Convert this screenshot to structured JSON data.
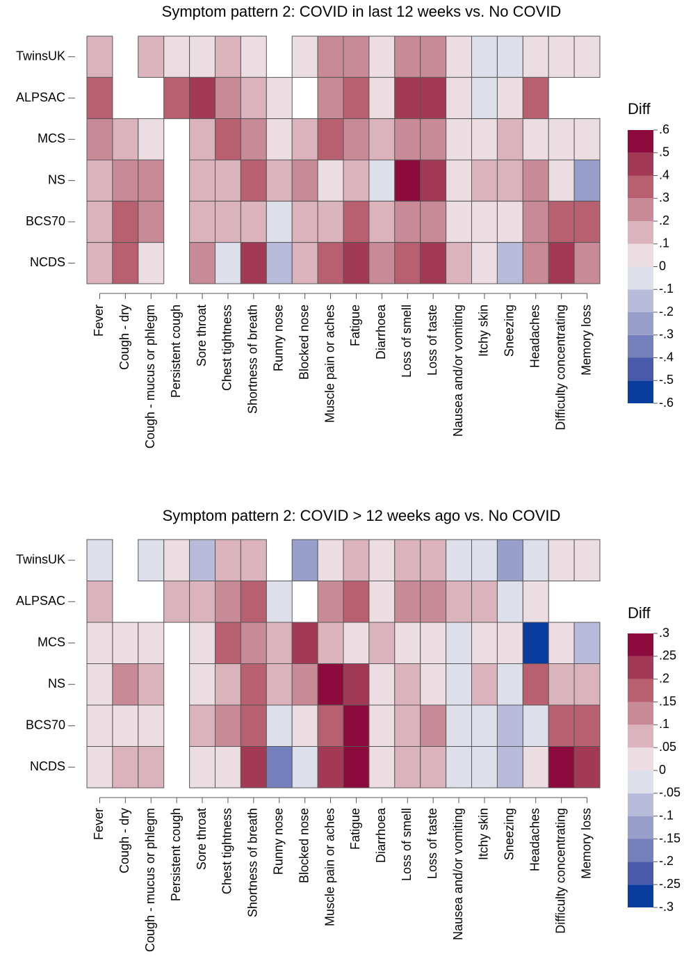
{
  "chart_data": [
    {
      "type": "heatmap",
      "title": "Symptom pattern 2: COVID in last 12 weeks vs. No COVID",
      "x_categories": [
        "Fever",
        "Cough - dry",
        "Cough - mucus or phlegm",
        "Persistent cough",
        "Sore throat",
        "Chest tightness",
        "Shortness of breath",
        "Runny nose",
        "Blocked nose",
        "Muscle pain or aches",
        "Fatigue",
        "Diarrhoea",
        "Loss of smell",
        "Loss of taste",
        "Nausea and/or vomiting",
        "Itchy skin",
        "Sneezing",
        "Headaches",
        "Difficulty concentrating",
        "Memory loss"
      ],
      "y_categories": [
        "TwinsUK",
        "ALPSAC",
        "MCS",
        "NS",
        "BCS70",
        "NCDS"
      ],
      "values": [
        [
          0.15,
          null,
          0.15,
          0.05,
          0.05,
          0.15,
          0.05,
          null,
          0.05,
          0.25,
          0.25,
          0.05,
          0.25,
          0.25,
          0.05,
          -0.05,
          -0.05,
          0.05,
          0.05,
          0.05
        ],
        [
          0.35,
          null,
          null,
          0.35,
          0.45,
          0.25,
          0.15,
          0.05,
          null,
          0.25,
          0.35,
          0.05,
          0.45,
          0.45,
          0.05,
          -0.05,
          0.05,
          0.35,
          null,
          null
        ],
        [
          0.25,
          0.15,
          0.05,
          null,
          0.15,
          0.35,
          0.25,
          0.05,
          0.15,
          0.35,
          0.25,
          0.15,
          0.25,
          0.25,
          0.05,
          0.05,
          0.15,
          0.05,
          0.05,
          0.05
        ],
        [
          0.15,
          0.25,
          0.25,
          null,
          0.15,
          0.15,
          0.35,
          0.15,
          0.25,
          0.05,
          0.15,
          -0.05,
          0.55,
          0.45,
          0.05,
          0.15,
          0.15,
          0.25,
          0.05,
          -0.25
        ],
        [
          0.15,
          0.35,
          0.25,
          null,
          0.15,
          0.15,
          0.15,
          -0.05,
          0.15,
          0.15,
          0.35,
          0.15,
          0.25,
          0.25,
          0.05,
          0.05,
          0.05,
          0.25,
          0.35,
          0.35
        ],
        [
          0.15,
          0.35,
          0.05,
          null,
          0.25,
          -0.05,
          0.45,
          -0.15,
          0.15,
          0.35,
          0.45,
          0.25,
          0.35,
          0.45,
          0.15,
          0.05,
          -0.15,
          0.25,
          0.45,
          0.25
        ]
      ],
      "colorbar": {
        "title": "Diff",
        "zlim": [
          -0.6,
          0.6
        ],
        "zticks": [
          {
            "value": 0.6,
            "label": ".6"
          },
          {
            "value": 0.5,
            "label": ".5"
          },
          {
            "value": 0.4,
            "label": ".4"
          },
          {
            "value": 0.3,
            "label": ".3"
          },
          {
            "value": 0.2,
            "label": ".2"
          },
          {
            "value": 0.1,
            "label": ".1"
          },
          0,
          {
            "value": -0.1,
            "label": "-.1"
          },
          {
            "value": -0.2,
            "label": "-.2"
          },
          {
            "value": -0.3,
            "label": "-.3"
          },
          {
            "value": -0.4,
            "label": "-.4"
          },
          {
            "value": -0.5,
            "label": "-.5"
          },
          {
            "value": -0.6,
            "label": "-.6"
          }
        ],
        "colors": [
          "#0a3ca0",
          "#4a5aaa",
          "#7480bb",
          "#989fcb",
          "#b8bcda",
          "#dddfea",
          "#ebdde1",
          "#dbb3bd",
          "#c98a98",
          "#b86070",
          "#a33a55",
          "#8c0a3c"
        ]
      }
    },
    {
      "type": "heatmap",
      "title": "Symptom pattern 2: COVID > 12 weeks ago vs. No COVID",
      "x_categories": [
        "Fever",
        "Cough - dry",
        "Cough - mucus or phlegm",
        "Persistent cough",
        "Sore throat",
        "Chest tightness",
        "Shortness of breath",
        "Runny nose",
        "Blocked nose",
        "Muscle pain or aches",
        "Fatigue",
        "Diarrhoea",
        "Loss of smell",
        "Loss of taste",
        "Nausea and/or vomiting",
        "Itchy skin",
        "Sneezing",
        "Headaches",
        "Difficulty concentrating",
        "Memory loss"
      ],
      "y_categories": [
        "TwinsUK",
        "ALPSAC",
        "MCS",
        "NS",
        "BCS70",
        "NCDS"
      ],
      "values": [
        [
          -0.025,
          null,
          -0.025,
          0.025,
          -0.075,
          0.075,
          0.075,
          null,
          -0.125,
          0.025,
          0.075,
          0.025,
          0.075,
          0.075,
          -0.025,
          -0.025,
          -0.125,
          -0.025,
          0.025,
          0.025
        ],
        [
          0.075,
          null,
          null,
          0.075,
          0.075,
          0.125,
          0.175,
          -0.025,
          null,
          0.125,
          0.175,
          0.025,
          0.125,
          0.125,
          0.075,
          0.075,
          -0.025,
          0.025,
          null,
          null
        ],
        [
          0.025,
          0.025,
          0.025,
          null,
          0.025,
          0.175,
          0.125,
          0.075,
          0.225,
          0.075,
          0.025,
          0.075,
          0.025,
          0.025,
          -0.025,
          0.025,
          0.025,
          -0.275,
          0.025,
          -0.075
        ],
        [
          0.025,
          0.125,
          0.075,
          null,
          0.025,
          0.075,
          0.175,
          0.075,
          0.125,
          0.275,
          0.225,
          0.025,
          0.075,
          0.025,
          -0.025,
          0.075,
          -0.025,
          0.175,
          0.075,
          0.075
        ],
        [
          0.025,
          0.025,
          0.025,
          null,
          0.075,
          0.125,
          0.175,
          -0.025,
          0.025,
          0.175,
          0.275,
          0.025,
          0.075,
          0.125,
          -0.025,
          -0.025,
          -0.075,
          -0.025,
          0.175,
          0.175
        ],
        [
          0.025,
          0.075,
          0.075,
          null,
          0.025,
          0.025,
          0.225,
          -0.175,
          -0.025,
          0.225,
          0.275,
          0.025,
          0.075,
          0.075,
          -0.025,
          -0.025,
          -0.075,
          0.025,
          0.275,
          0.225
        ]
      ],
      "colorbar": {
        "title": "Diff",
        "zlim": [
          -0.3,
          0.3
        ],
        "zticks": [
          {
            "value": 0.3,
            "label": ".3"
          },
          {
            "value": 0.25,
            "label": ".25"
          },
          {
            "value": 0.2,
            "label": ".2"
          },
          {
            "value": 0.15,
            "label": ".15"
          },
          {
            "value": 0.1,
            "label": ".1"
          },
          {
            "value": 0.05,
            "label": ".05"
          },
          0,
          {
            "value": -0.05,
            "label": "-.05"
          },
          {
            "value": -0.1,
            "label": "-.1"
          },
          {
            "value": -0.15,
            "label": "-.15"
          },
          {
            "value": -0.2,
            "label": "-.2"
          },
          {
            "value": -0.25,
            "label": "-.25"
          },
          {
            "value": -0.3,
            "label": "-.3"
          }
        ],
        "colors": [
          "#0a3ca0",
          "#4a5aaa",
          "#7480bb",
          "#989fcb",
          "#b8bcda",
          "#dddfea",
          "#ebdde1",
          "#dbb3bd",
          "#c98a98",
          "#b86070",
          "#a33a55",
          "#8c0a3c"
        ]
      }
    }
  ]
}
